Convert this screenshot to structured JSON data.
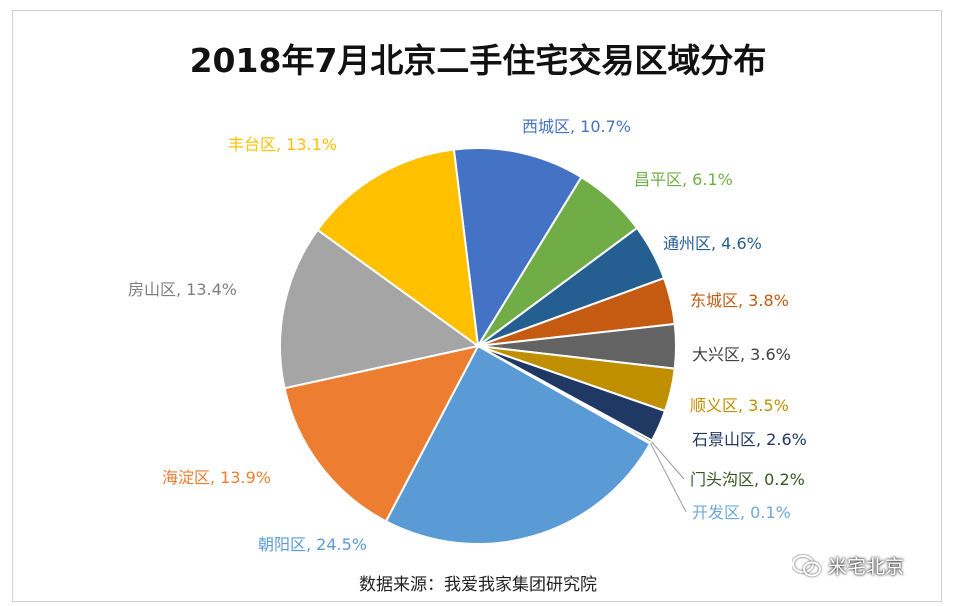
{
  "chart_data": {
    "type": "pie",
    "title": "2018年7月北京二手住宅交易区域分布",
    "slices": [
      {
        "label": "西城区",
        "value_label": "10.7%",
        "value": 10.7,
        "color": "#4472c4"
      },
      {
        "label": "昌平区",
        "value_label": "6.1%",
        "value": 6.1,
        "color": "#70ad47"
      },
      {
        "label": "通州区",
        "value_label": "4.6%",
        "value": 4.6,
        "color": "#255e91"
      },
      {
        "label": "东城区",
        "value_label": "3.8%",
        "value": 3.8,
        "color": "#c55a11"
      },
      {
        "label": "大兴区",
        "value_label": "3.6%",
        "value": 3.6,
        "color": "#636363"
      },
      {
        "label": "顺义区",
        "value_label": "3.5%",
        "value": 3.5,
        "color": "#bf8f00"
      },
      {
        "label": "石景山区",
        "value_label": "2.6%",
        "value": 2.6,
        "color": "#203864"
      },
      {
        "label": "门头沟区",
        "value_label": "0.2%",
        "value": 0.2,
        "color": "#375623"
      },
      {
        "label": "开发区",
        "value_label": "0.1%",
        "value": 0.1,
        "color": "#6fa8dc"
      },
      {
        "label": "朝阳区",
        "value_label": "24.5%",
        "value": 24.5,
        "color": "#5b9bd5"
      },
      {
        "label": "海淀区",
        "value_label": "13.9%",
        "value": 13.9,
        "color": "#ed7d31"
      },
      {
        "label": "房山区",
        "value_label": "13.4%",
        "value": 13.4,
        "color": "#a5a5a5"
      },
      {
        "label": "丰台区",
        "value_label": "13.1%",
        "value": 13.1,
        "color": "#ffc000"
      }
    ]
  },
  "source_note": "数据来源：我爱我家集团研究院",
  "watermark": {
    "text": "米宅北京",
    "icon": "wechat-icon"
  }
}
